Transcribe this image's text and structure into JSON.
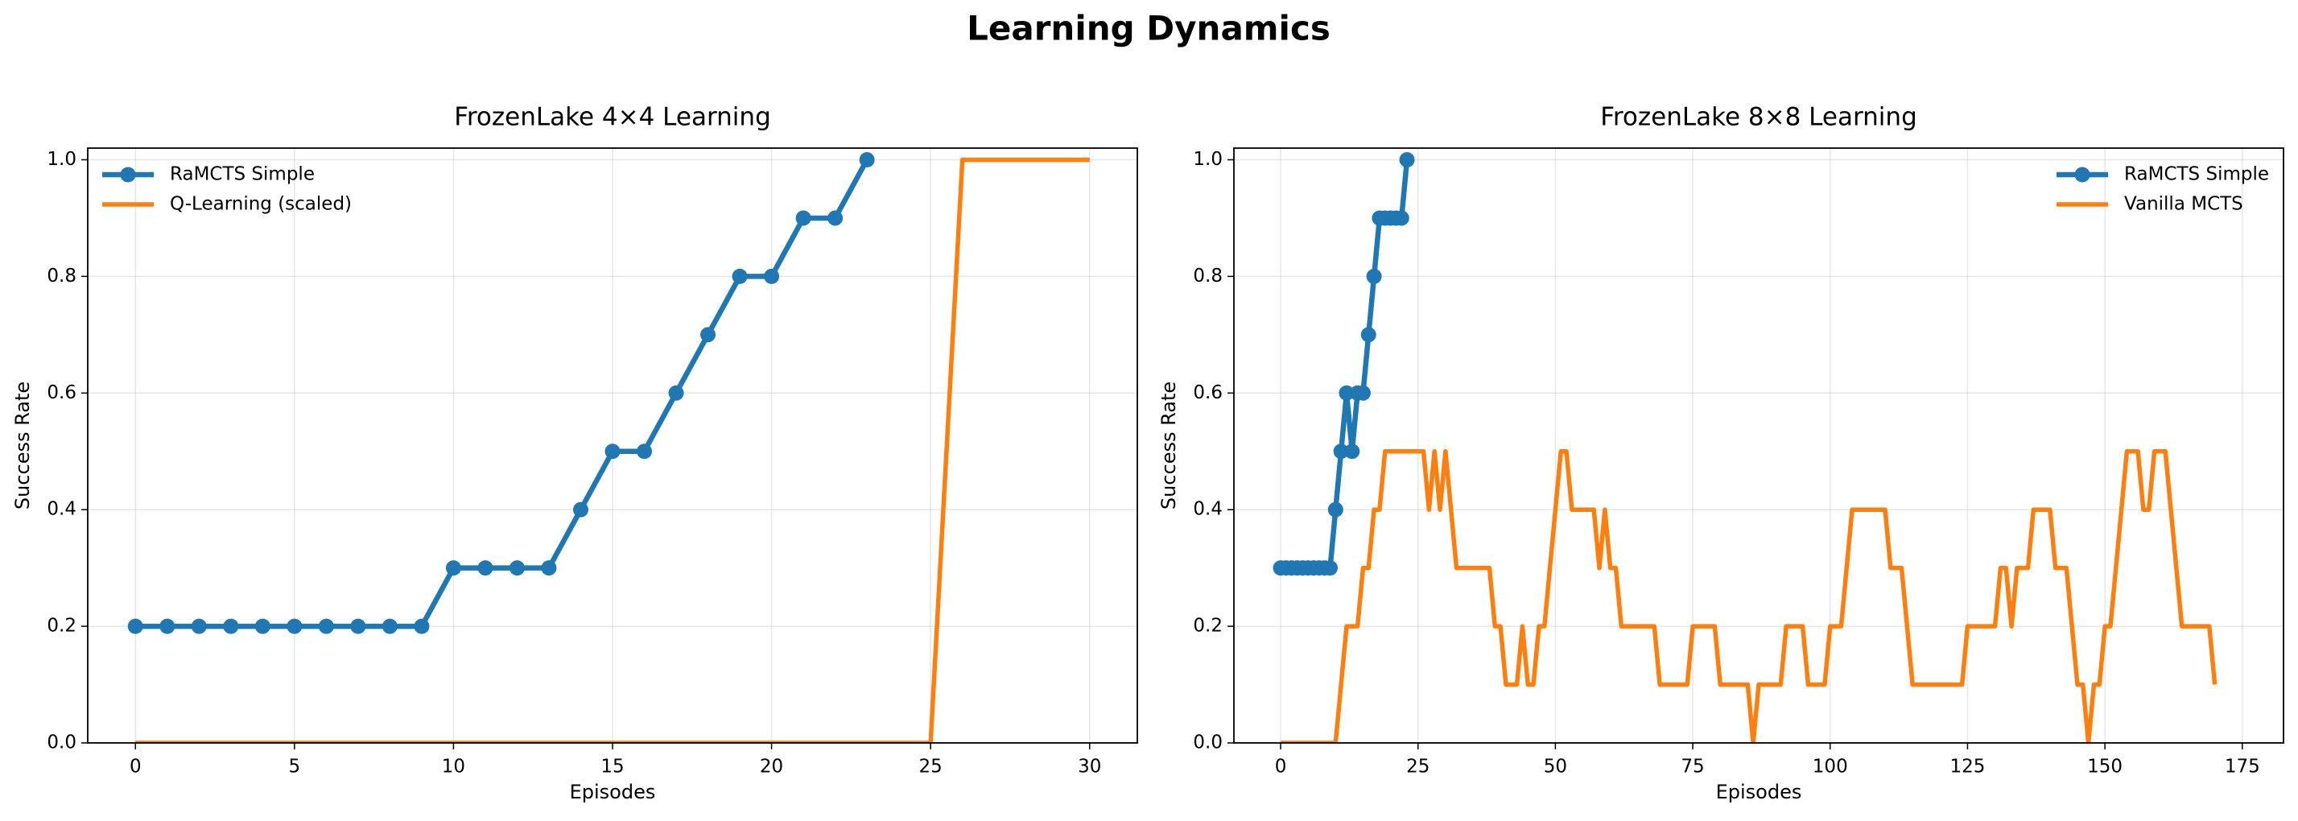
{
  "title": "Learning Dynamics",
  "chart_data": [
    {
      "type": "line",
      "title": "FrozenLake 4×4 Learning",
      "xlabel": "Episodes",
      "ylabel": "Success Rate",
      "xlim": [
        -1.5,
        31.5
      ],
      "ylim": [
        0,
        1.02
      ],
      "xticks": [
        0,
        5,
        10,
        15,
        20,
        25,
        30
      ],
      "yticks": [
        {
          "value": 0,
          "label": "0.0"
        },
        0.2,
        0.4,
        0.6,
        0.8,
        {
          "value": 1,
          "label": "1.0"
        }
      ],
      "grid": true,
      "legend": "upper-left",
      "series": [
        {
          "name": "RaMCTS Simple",
          "color": "#1f77b4",
          "marker": "o",
          "x": [
            0,
            1,
            2,
            3,
            4,
            5,
            6,
            7,
            8,
            9,
            10,
            11,
            12,
            13,
            14,
            15,
            16,
            17,
            18,
            19,
            20,
            21,
            22,
            23
          ],
          "values": [
            0.2,
            0.2,
            0.2,
            0.2,
            0.2,
            0.2,
            0.2,
            0.2,
            0.2,
            0.2,
            0.3,
            0.3,
            0.3,
            0.3,
            0.4,
            0.5,
            0.5,
            0.6,
            0.7,
            0.8,
            0.8,
            0.9,
            0.9,
            1.0
          ]
        },
        {
          "name": "Q-Learning (scaled)",
          "color": "#ff7f0e",
          "x": [
            0,
            1,
            2,
            3,
            4,
            5,
            6,
            7,
            8,
            9,
            10,
            11,
            12,
            13,
            14,
            15,
            16,
            17,
            18,
            19,
            20,
            21,
            22,
            23,
            24,
            25,
            26,
            27,
            28,
            29,
            30
          ],
          "values": [
            0,
            0,
            0,
            0,
            0,
            0,
            0,
            0,
            0,
            0,
            0,
            0,
            0,
            0,
            0,
            0,
            0,
            0,
            0,
            0,
            0,
            0,
            0,
            0,
            0,
            0,
            1,
            1,
            1,
            1,
            1
          ]
        }
      ]
    },
    {
      "type": "line",
      "title": "FrozenLake 8×8 Learning",
      "xlabel": "Episodes",
      "ylabel": "Success Rate",
      "xlim": [
        -8.5,
        182.5
      ],
      "ylim": [
        0,
        1.02
      ],
      "xticks": [
        0,
        25,
        50,
        75,
        100,
        125,
        150,
        175
      ],
      "yticks": [
        {
          "value": 0,
          "label": "0.0"
        },
        0.2,
        0.4,
        0.6,
        0.8,
        {
          "value": 1,
          "label": "1.0"
        }
      ],
      "grid": true,
      "legend": "upper-right",
      "series": [
        {
          "name": "RaMCTS Simple",
          "color": "#1f77b4",
          "marker": "o",
          "x": [
            0,
            1,
            2,
            3,
            4,
            5,
            6,
            7,
            8,
            9,
            10,
            11,
            12,
            13,
            14,
            15,
            16,
            17,
            18,
            19,
            20,
            21,
            22,
            23
          ],
          "values": [
            0.3,
            0.3,
            0.3,
            0.3,
            0.3,
            0.3,
            0.3,
            0.3,
            0.3,
            0.3,
            0.4,
            0.5,
            0.6,
            0.5,
            0.6,
            0.6,
            0.7,
            0.8,
            0.9,
            0.9,
            0.9,
            0.9,
            0.9,
            1.0
          ]
        },
        {
          "name": "Vanilla MCTS",
          "color": "#ff7f0e",
          "x": [
            0,
            1,
            2,
            3,
            4,
            5,
            6,
            7,
            8,
            9,
            10,
            11,
            12,
            13,
            14,
            15,
            16,
            17,
            18,
            19,
            20,
            21,
            22,
            23,
            24,
            25,
            26,
            27,
            28,
            29,
            30,
            31,
            32,
            33,
            34,
            35,
            36,
            37,
            38,
            39,
            40,
            41,
            42,
            43,
            44,
            45,
            46,
            47,
            48,
            49,
            50,
            51,
            52,
            53,
            54,
            55,
            56,
            57,
            58,
            59,
            60,
            61,
            62,
            63,
            64,
            65,
            66,
            67,
            68,
            69,
            70,
            71,
            72,
            73,
            74,
            75,
            76,
            77,
            78,
            79,
            80,
            81,
            82,
            83,
            84,
            85,
            86,
            87,
            88,
            89,
            90,
            91,
            92,
            93,
            94,
            95,
            96,
            97,
            98,
            99,
            100,
            101,
            102,
            103,
            104,
            105,
            106,
            107,
            108,
            109,
            110,
            111,
            112,
            113,
            114,
            115,
            116,
            117,
            118,
            119,
            120,
            121,
            122,
            123,
            124,
            125,
            126,
            127,
            128,
            129,
            130,
            131,
            132,
            133,
            134,
            135,
            136,
            137,
            138,
            139,
            140,
            141,
            142,
            143,
            144,
            145,
            146,
            147,
            148,
            149,
            150,
            151,
            152,
            153,
            154,
            155,
            156,
            157,
            158,
            159,
            160,
            161,
            162,
            163,
            164,
            165,
            166,
            167,
            168,
            169,
            170
          ],
          "values": [
            0,
            0,
            0,
            0,
            0,
            0,
            0,
            0,
            0,
            0,
            0,
            0.1,
            0.2,
            0.2,
            0.2,
            0.3,
            0.3,
            0.4,
            0.4,
            0.5,
            0.5,
            0.5,
            0.5,
            0.5,
            0.5,
            0.5,
            0.5,
            0.4,
            0.5,
            0.4,
            0.5,
            0.4,
            0.3,
            0.3,
            0.3,
            0.3,
            0.3,
            0.3,
            0.3,
            0.2,
            0.2,
            0.1,
            0.1,
            0.1,
            0.2,
            0.1,
            0.1,
            0.2,
            0.2,
            0.3,
            0.4,
            0.5,
            0.5,
            0.4,
            0.4,
            0.4,
            0.4,
            0.4,
            0.3,
            0.4,
            0.3,
            0.3,
            0.2,
            0.2,
            0.2,
            0.2,
            0.2,
            0.2,
            0.2,
            0.1,
            0.1,
            0.1,
            0.1,
            0.1,
            0.1,
            0.2,
            0.2,
            0.2,
            0.2,
            0.2,
            0.1,
            0.1,
            0.1,
            0.1,
            0.1,
            0.1,
            0,
            0.1,
            0.1,
            0.1,
            0.1,
            0.1,
            0.2,
            0.2,
            0.2,
            0.2,
            0.1,
            0.1,
            0.1,
            0.1,
            0.2,
            0.2,
            0.2,
            0.3,
            0.4,
            0.4,
            0.4,
            0.4,
            0.4,
            0.4,
            0.4,
            0.3,
            0.3,
            0.3,
            0.2,
            0.1,
            0.1,
            0.1,
            0.1,
            0.1,
            0.1,
            0.1,
            0.1,
            0.1,
            0.1,
            0.2,
            0.2,
            0.2,
            0.2,
            0.2,
            0.2,
            0.3,
            0.3,
            0.2,
            0.3,
            0.3,
            0.3,
            0.4,
            0.4,
            0.4,
            0.4,
            0.3,
            0.3,
            0.3,
            0.2,
            0.1,
            0.1,
            0,
            0.1,
            0.1,
            0.2,
            0.2,
            0.3,
            0.4,
            0.5,
            0.5,
            0.5,
            0.4,
            0.4,
            0.5,
            0.5,
            0.5,
            0.4,
            0.3,
            0.2,
            0.2,
            0.2,
            0.2,
            0.2,
            0.2,
            0.1
          ]
        }
      ]
    }
  ]
}
